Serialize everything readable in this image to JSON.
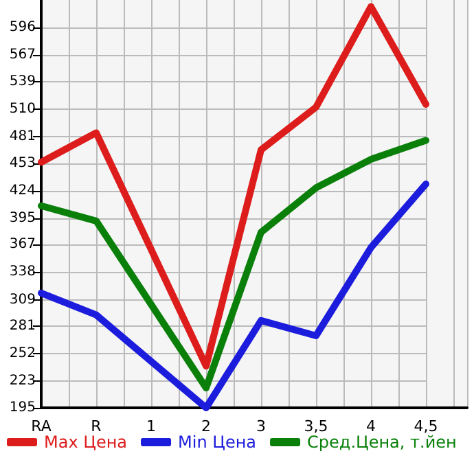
{
  "chart_data": {
    "type": "line",
    "categories": [
      "RA",
      "R",
      "1",
      "2",
      "3",
      "3,5",
      "4",
      "4,5"
    ],
    "series": [
      {
        "name": "Max Цена",
        "color": "#dd1c1c",
        "values": [
          454,
          485,
          null,
          239,
          467,
          512,
          618,
          515
        ]
      },
      {
        "name": "Min Цена",
        "color": "#1c1cdd",
        "values": [
          316,
          293,
          null,
          195,
          287,
          271,
          364,
          431
        ]
      },
      {
        "name": "Сред.Цена, т.йен",
        "color": "#0a800a",
        "values": [
          408,
          392,
          null,
          216,
          380,
          427,
          457,
          477
        ]
      }
    ],
    "ylim": [
      195,
      625
    ],
    "yticks": [
      195,
      223,
      252,
      281,
      309,
      338,
      367,
      395,
      424,
      453,
      481,
      510,
      539,
      567,
      596
    ],
    "grid": true,
    "legend": "bottom",
    "marker": "none",
    "line_style": "solid"
  }
}
